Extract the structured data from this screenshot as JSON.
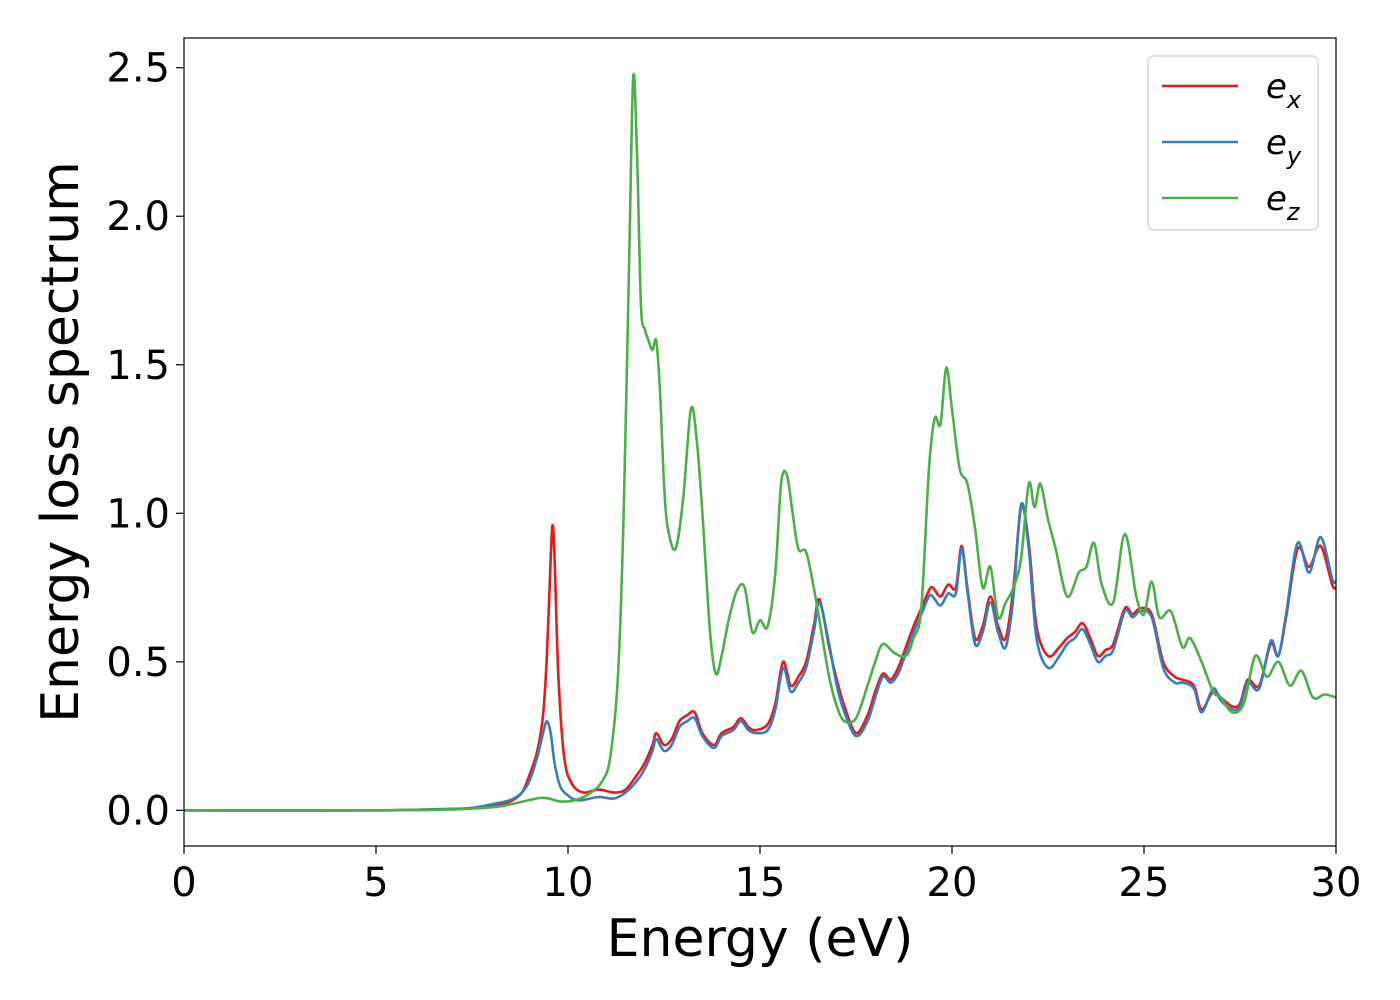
{
  "chart_data": {
    "type": "line",
    "xlabel": "Energy (eV)",
    "ylabel": "Energy loss spectrum",
    "xlim": [
      0,
      30
    ],
    "ylim": [
      -0.12,
      2.6
    ],
    "xticks": [
      "0",
      "5",
      "10",
      "15",
      "20",
      "25",
      "30"
    ],
    "yticks": [
      "0.0",
      "0.5",
      "1.0",
      "1.5",
      "2.0",
      "2.5"
    ],
    "grid": false,
    "legend_position": "top-right",
    "series": [
      {
        "name": "e",
        "subscript": "x",
        "color": "#e41a1c",
        "x": [
          0,
          5,
          7,
          7.5,
          8,
          8.5,
          8.8,
          9.0,
          9.2,
          9.35,
          9.45,
          9.55,
          9.6,
          9.65,
          9.75,
          9.9,
          10.1,
          10.4,
          10.8,
          11.2,
          11.5,
          11.8,
          12.0,
          12.2,
          12.3,
          12.5,
          12.7,
          12.9,
          13.1,
          13.3,
          13.5,
          13.8,
          14.0,
          14.3,
          14.5,
          14.7,
          14.9,
          15.2,
          15.4,
          15.6,
          15.8,
          16.0,
          16.2,
          16.4,
          16.55,
          16.8,
          17.0,
          17.2,
          17.5,
          17.8,
          18.0,
          18.2,
          18.4,
          18.6,
          18.8,
          19.0,
          19.2,
          19.4,
          19.5,
          19.7,
          19.9,
          20.1,
          20.25,
          20.4,
          20.6,
          20.8,
          21.0,
          21.2,
          21.4,
          21.6,
          21.8,
          22.0,
          22.2,
          22.5,
          22.8,
          23.0,
          23.2,
          23.4,
          23.6,
          23.8,
          24.0,
          24.2,
          24.5,
          24.7,
          24.9,
          25.2,
          25.5,
          25.8,
          26.0,
          26.3,
          26.5,
          26.8,
          27.0,
          27.3,
          27.5,
          27.7,
          28.0,
          28.3,
          28.5,
          28.7,
          29.0,
          29.3,
          29.6,
          29.9,
          30
        ],
        "values": [
          0,
          0,
          0.005,
          0.008,
          0.015,
          0.03,
          0.06,
          0.12,
          0.2,
          0.32,
          0.52,
          0.85,
          0.96,
          0.85,
          0.45,
          0.18,
          0.09,
          0.06,
          0.07,
          0.06,
          0.07,
          0.12,
          0.16,
          0.22,
          0.26,
          0.22,
          0.24,
          0.3,
          0.32,
          0.33,
          0.26,
          0.22,
          0.26,
          0.28,
          0.31,
          0.28,
          0.27,
          0.29,
          0.36,
          0.5,
          0.42,
          0.45,
          0.5,
          0.62,
          0.71,
          0.55,
          0.44,
          0.35,
          0.26,
          0.32,
          0.4,
          0.46,
          0.44,
          0.48,
          0.55,
          0.62,
          0.68,
          0.74,
          0.75,
          0.72,
          0.76,
          0.75,
          0.89,
          0.75,
          0.58,
          0.62,
          0.72,
          0.62,
          0.58,
          0.75,
          1.02,
          0.9,
          0.62,
          0.52,
          0.55,
          0.58,
          0.6,
          0.63,
          0.58,
          0.52,
          0.54,
          0.56,
          0.68,
          0.66,
          0.68,
          0.66,
          0.5,
          0.45,
          0.44,
          0.42,
          0.34,
          0.4,
          0.38,
          0.35,
          0.36,
          0.44,
          0.42,
          0.56,
          0.52,
          0.65,
          0.88,
          0.82,
          0.89,
          0.76,
          0.75
        ]
      },
      {
        "name": "e",
        "subscript": "y",
        "color": "#377eb8",
        "x": [
          0,
          5,
          7,
          7.5,
          8,
          8.5,
          8.8,
          9.0,
          9.2,
          9.35,
          9.45,
          9.55,
          9.65,
          9.8,
          10.0,
          10.2,
          10.4,
          10.8,
          11.2,
          11.5,
          11.8,
          12.0,
          12.2,
          12.3,
          12.5,
          12.7,
          12.9,
          13.1,
          13.3,
          13.5,
          13.8,
          14.0,
          14.3,
          14.5,
          14.7,
          14.9,
          15.2,
          15.4,
          15.6,
          15.8,
          16.0,
          16.2,
          16.4,
          16.55,
          16.8,
          17.0,
          17.2,
          17.5,
          17.8,
          18.0,
          18.2,
          18.4,
          18.6,
          18.8,
          19.0,
          19.2,
          19.4,
          19.5,
          19.7,
          19.9,
          20.1,
          20.25,
          20.4,
          20.6,
          20.8,
          21.0,
          21.2,
          21.4,
          21.6,
          21.8,
          22.0,
          22.2,
          22.5,
          22.8,
          23.0,
          23.2,
          23.4,
          23.6,
          23.8,
          24.0,
          24.2,
          24.5,
          24.7,
          24.9,
          25.2,
          25.5,
          25.8,
          26.0,
          26.3,
          26.5,
          26.8,
          27.0,
          27.3,
          27.5,
          27.7,
          28.0,
          28.3,
          28.5,
          28.7,
          29.0,
          29.3,
          29.6,
          29.9,
          30
        ],
        "values": [
          0,
          0,
          0.005,
          0.008,
          0.02,
          0.035,
          0.06,
          0.1,
          0.18,
          0.26,
          0.3,
          0.26,
          0.16,
          0.08,
          0.05,
          0.035,
          0.035,
          0.045,
          0.04,
          0.06,
          0.1,
          0.14,
          0.2,
          0.24,
          0.2,
          0.22,
          0.28,
          0.3,
          0.31,
          0.25,
          0.21,
          0.25,
          0.27,
          0.3,
          0.27,
          0.26,
          0.27,
          0.34,
          0.48,
          0.4,
          0.43,
          0.48,
          0.6,
          0.7,
          0.56,
          0.42,
          0.33,
          0.25,
          0.3,
          0.38,
          0.45,
          0.43,
          0.46,
          0.53,
          0.6,
          0.66,
          0.72,
          0.72,
          0.69,
          0.73,
          0.73,
          0.88,
          0.74,
          0.56,
          0.6,
          0.7,
          0.6,
          0.55,
          0.72,
          1.03,
          0.88,
          0.58,
          0.48,
          0.52,
          0.56,
          0.58,
          0.61,
          0.56,
          0.5,
          0.52,
          0.54,
          0.67,
          0.65,
          0.67,
          0.65,
          0.48,
          0.43,
          0.43,
          0.41,
          0.33,
          0.41,
          0.37,
          0.34,
          0.35,
          0.43,
          0.41,
          0.57,
          0.52,
          0.66,
          0.9,
          0.8,
          0.92,
          0.78,
          0.77
        ]
      },
      {
        "name": "e",
        "subscript": "z",
        "color": "#4daf4a",
        "x": [
          0,
          5,
          7,
          8,
          8.5,
          9.0,
          9.3,
          9.5,
          9.8,
          10.2,
          10.6,
          10.9,
          11.1,
          11.3,
          11.45,
          11.6,
          11.7,
          11.8,
          11.9,
          12.0,
          12.1,
          12.2,
          12.3,
          12.4,
          12.5,
          12.6,
          12.8,
          13.0,
          13.2,
          13.35,
          13.5,
          13.7,
          13.85,
          14.0,
          14.2,
          14.4,
          14.6,
          14.8,
          15.0,
          15.2,
          15.4,
          15.55,
          15.7,
          15.85,
          16.0,
          16.2,
          16.4,
          16.6,
          16.8,
          17.0,
          17.2,
          17.5,
          17.8,
          18.0,
          18.2,
          18.5,
          18.8,
          19.0,
          19.2,
          19.4,
          19.55,
          19.7,
          19.85,
          20.0,
          20.2,
          20.4,
          20.6,
          20.8,
          21.0,
          21.2,
          21.4,
          21.6,
          21.8,
          22.0,
          22.15,
          22.3,
          22.5,
          22.7,
          23.0,
          23.3,
          23.5,
          23.7,
          23.9,
          24.2,
          24.5,
          24.8,
          25.0,
          25.2,
          25.4,
          25.7,
          26.0,
          26.2,
          26.5,
          26.8,
          27.0,
          27.3,
          27.6,
          27.9,
          28.2,
          28.5,
          28.8,
          29.1,
          29.4,
          29.7,
          30
        ],
        "values": [
          0,
          0,
          0.003,
          0.01,
          0.02,
          0.035,
          0.042,
          0.04,
          0.03,
          0.035,
          0.06,
          0.1,
          0.18,
          0.45,
          1.0,
          1.9,
          2.47,
          2.2,
          1.7,
          1.62,
          1.58,
          1.55,
          1.58,
          1.4,
          1.1,
          0.95,
          0.88,
          1.05,
          1.35,
          1.25,
          1.0,
          0.6,
          0.46,
          0.52,
          0.65,
          0.74,
          0.75,
          0.6,
          0.64,
          0.62,
          0.8,
          1.1,
          1.13,
          1.0,
          0.88,
          0.87,
          0.75,
          0.6,
          0.45,
          0.35,
          0.3,
          0.31,
          0.42,
          0.5,
          0.56,
          0.53,
          0.52,
          0.58,
          0.68,
          1.15,
          1.32,
          1.3,
          1.49,
          1.35,
          1.15,
          1.1,
          0.95,
          0.75,
          0.82,
          0.65,
          0.7,
          0.75,
          0.85,
          1.1,
          1.02,
          1.1,
          0.98,
          0.88,
          0.72,
          0.8,
          0.82,
          0.9,
          0.76,
          0.7,
          0.93,
          0.72,
          0.66,
          0.77,
          0.65,
          0.67,
          0.55,
          0.58,
          0.5,
          0.4,
          0.38,
          0.33,
          0.36,
          0.52,
          0.45,
          0.5,
          0.42,
          0.47,
          0.38,
          0.39,
          0.38
        ]
      }
    ]
  }
}
